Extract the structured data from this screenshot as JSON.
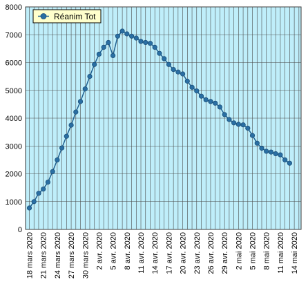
{
  "chart_data": {
    "type": "line",
    "title": "",
    "xlabel": "",
    "ylabel": "",
    "ylim": [
      0,
      8000
    ],
    "y_ticks": [
      0,
      1000,
      2000,
      3000,
      4000,
      5000,
      6000,
      7000,
      8000
    ],
    "x_tick_labels": [
      "18 mars 2020",
      "21 mars 2020",
      "24 mars 2020",
      "27 mars 2020",
      "30 mars 2020",
      "2 avr. 2020",
      "5 avr. 2020",
      "8 avr. 2020",
      "11 avr. 2020",
      "14 avr. 2020",
      "17 avr. 2020",
      "20 avr. 2020",
      "23 avr. 2020",
      "26 avr. 2020",
      "29 avr. 2020",
      "2 mai 2020",
      "5 mai 2020",
      "8 mai 2020",
      "11 mai 2020",
      "14 mai 2020"
    ],
    "x_start": "18 mars 2020",
    "grid": true,
    "legend_position": "top-left",
    "colors": {
      "plot_background": "#bfeefa",
      "grid": "#4a4a4a",
      "series": "#1f5f8f",
      "marker": "#2a6fa3",
      "legend_background": "#ffffcc"
    },
    "series": [
      {
        "name": "Réanim Tot",
        "values": [
          770,
          1000,
          1300,
          1450,
          1700,
          2080,
          2500,
          2930,
          3350,
          3750,
          4220,
          4600,
          5050,
          5500,
          5930,
          6300,
          6550,
          6720,
          6250,
          6950,
          7130,
          7030,
          6950,
          6880,
          6760,
          6720,
          6690,
          6550,
          6330,
          6140,
          5930,
          5750,
          5660,
          5590,
          5330,
          5110,
          4980,
          4790,
          4660,
          4600,
          4540,
          4400,
          4130,
          3950,
          3830,
          3780,
          3760,
          3640,
          3380,
          3100,
          2920,
          2810,
          2780,
          2720,
          2680,
          2500,
          2380
        ]
      }
    ]
  }
}
